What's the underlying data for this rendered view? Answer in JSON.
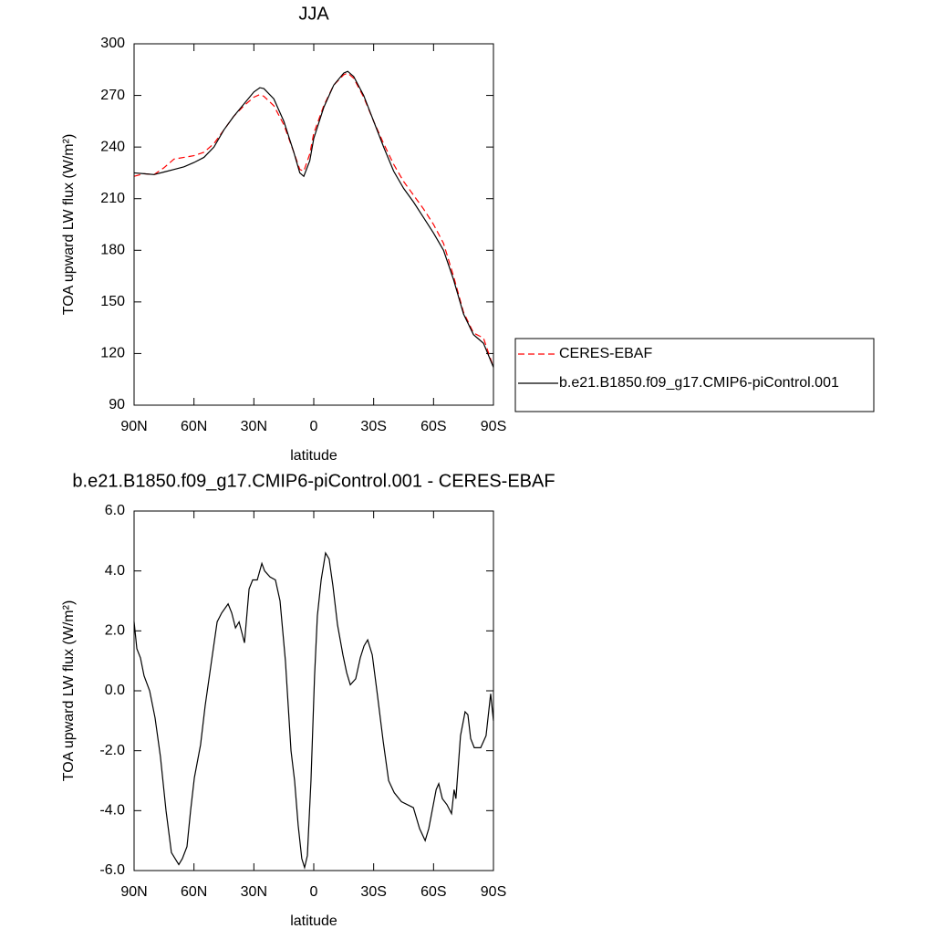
{
  "chart_data": [
    {
      "type": "line",
      "title": "JJA",
      "xlabel": "latitude",
      "ylabel": "TOA upward LW flux (W/m²)",
      "x": [
        90,
        85,
        80,
        75,
        70,
        65,
        60,
        55,
        50,
        45,
        40,
        35,
        30,
        27,
        25,
        20,
        15,
        10,
        7,
        5,
        2,
        0,
        -5,
        -10,
        -15,
        -17,
        -20,
        -25,
        -30,
        -35,
        -40,
        -45,
        -50,
        -55,
        -60,
        -65,
        -70,
        -75,
        -80,
        -85,
        -90
      ],
      "series": [
        {
          "name": "CERES-EBAF",
          "color": "#ff0000",
          "line_style": "dashed",
          "values": [
            223,
            224.5,
            224,
            228,
            233,
            234,
            235,
            237,
            242,
            250,
            258,
            264,
            269,
            270.5,
            269.5,
            264,
            253,
            237,
            227,
            226,
            236,
            248,
            264,
            276,
            282,
            283,
            280,
            269,
            255,
            242,
            230,
            220,
            212,
            204,
            195,
            184,
            165,
            144,
            132,
            129,
            112
          ]
        },
        {
          "name": "b.e21.B1850.f09_g17.CMIP6-piControl.001",
          "color": "#000000",
          "line_style": "solid",
          "values": [
            225,
            224.5,
            224,
            225.5,
            227,
            228.5,
            231,
            234,
            240,
            250,
            258,
            265,
            272,
            274.5,
            274,
            268,
            255,
            237,
            225,
            223,
            232,
            245,
            263,
            276,
            283,
            284,
            281,
            270,
            255,
            240,
            226,
            216,
            208,
            199,
            190,
            180,
            163,
            143,
            131,
            126,
            112
          ]
        }
      ],
      "xlim": [
        90,
        -90
      ],
      "xticks": [
        {
          "value": 90,
          "label": "90N"
        },
        {
          "value": 60,
          "label": "60N"
        },
        {
          "value": 30,
          "label": "30N"
        },
        0,
        {
          "value": -30,
          "label": "30S"
        },
        {
          "value": -60,
          "label": "60S"
        },
        {
          "value": -90,
          "label": "90S"
        }
      ],
      "ylim": [
        90,
        300
      ],
      "yticks": [
        90,
        120,
        150,
        180,
        210,
        240,
        270,
        300
      ],
      "legend": "right"
    },
    {
      "type": "line",
      "title": "b.e21.B1850.f09_g17.CMIP6-piControl.001 - CERES-EBAF",
      "xlabel": "latitude",
      "ylabel": "TOA upward LW flux (W/m²)",
      "x": [
        90,
        88.6,
        86.8,
        85,
        82.2,
        79.5,
        76.8,
        74,
        71.3,
        67.6,
        65.8,
        63.5,
        61.7,
        59.8,
        56.7,
        54.4,
        51.2,
        48.4,
        46.1,
        42.9,
        41.1,
        39.2,
        37.4,
        34.7,
        32.4,
        30.6,
        28.3,
        26,
        24.6,
        21.9,
        19.2,
        16.9,
        14.2,
        11.4,
        9.6,
        7.8,
        6,
        4.6,
        3.2,
        1.4,
        -0.4,
        -1.8,
        -3.7,
        -5.9,
        -7.7,
        -9.6,
        -11.9,
        -14.6,
        -16.5,
        -18.3,
        -21,
        -23.3,
        -25.2,
        -27,
        -29.3,
        -32,
        -34.8,
        -37.5,
        -40.3,
        -43.9,
        -49.9,
        -53,
        -55.8,
        -57.6,
        -61.3,
        -62.6,
        -64.4,
        -66.7,
        -69,
        -70.3,
        -71.2,
        -73.5,
        -75.8,
        -77.2,
        -78.6,
        -80.4,
        -83.6,
        -86.3,
        -88.6,
        -90
      ],
      "series": [
        {
          "name": "b.e21.B1850.f09_g17.CMIP6-piControl.001 - CERES-EBAF",
          "color": "#000000",
          "line_style": "solid",
          "values": [
            2.3,
            1.4,
            1.1,
            0.5,
            0,
            -0.9,
            -2.2,
            -4,
            -5.4,
            -5.8,
            -5.6,
            -5.2,
            -4,
            -2.9,
            -1.8,
            -0.5,
            1,
            2.3,
            2.6,
            2.9,
            2.6,
            2.1,
            2.3,
            1.6,
            3.4,
            3.7,
            3.7,
            4.25,
            4,
            3.8,
            3.7,
            3,
            1,
            -2,
            -3,
            -4.5,
            -5.6,
            -5.9,
            -5.5,
            -3,
            0.5,
            2.5,
            3.7,
            4.6,
            4.4,
            3.5,
            2.2,
            1.2,
            0.6,
            0.2,
            0.4,
            1.1,
            1.5,
            1.7,
            1.2,
            -0.2,
            -1.7,
            -3,
            -3.4,
            -3.7,
            -3.9,
            -4.6,
            -5,
            -4.6,
            -3.3,
            -3.1,
            -3.6,
            -3.8,
            -4.1,
            -3.3,
            -3.6,
            -1.5,
            -0.7,
            -0.8,
            -1.6,
            -1.9,
            -1.9,
            -1.5,
            -0.1,
            -1
          ]
        }
      ],
      "xlim": [
        90,
        -90
      ],
      "xticks": [
        {
          "value": 90,
          "label": "90N"
        },
        {
          "value": 60,
          "label": "60N"
        },
        {
          "value": 30,
          "label": "30N"
        },
        0,
        {
          "value": -30,
          "label": "30S"
        },
        {
          "value": -60,
          "label": "60S"
        },
        {
          "value": -90,
          "label": "90S"
        }
      ],
      "ylim": [
        -6,
        6
      ],
      "yticks": [
        {
          "value": -6,
          "label": "-6.0"
        },
        {
          "value": -4,
          "label": "-4.0"
        },
        {
          "value": -2,
          "label": "-2.0"
        },
        {
          "value": 0,
          "label": "0.0"
        },
        {
          "value": 2,
          "label": "2.0"
        },
        {
          "value": 4,
          "label": "4.0"
        },
        {
          "value": 6,
          "label": "6.0"
        }
      ]
    }
  ]
}
